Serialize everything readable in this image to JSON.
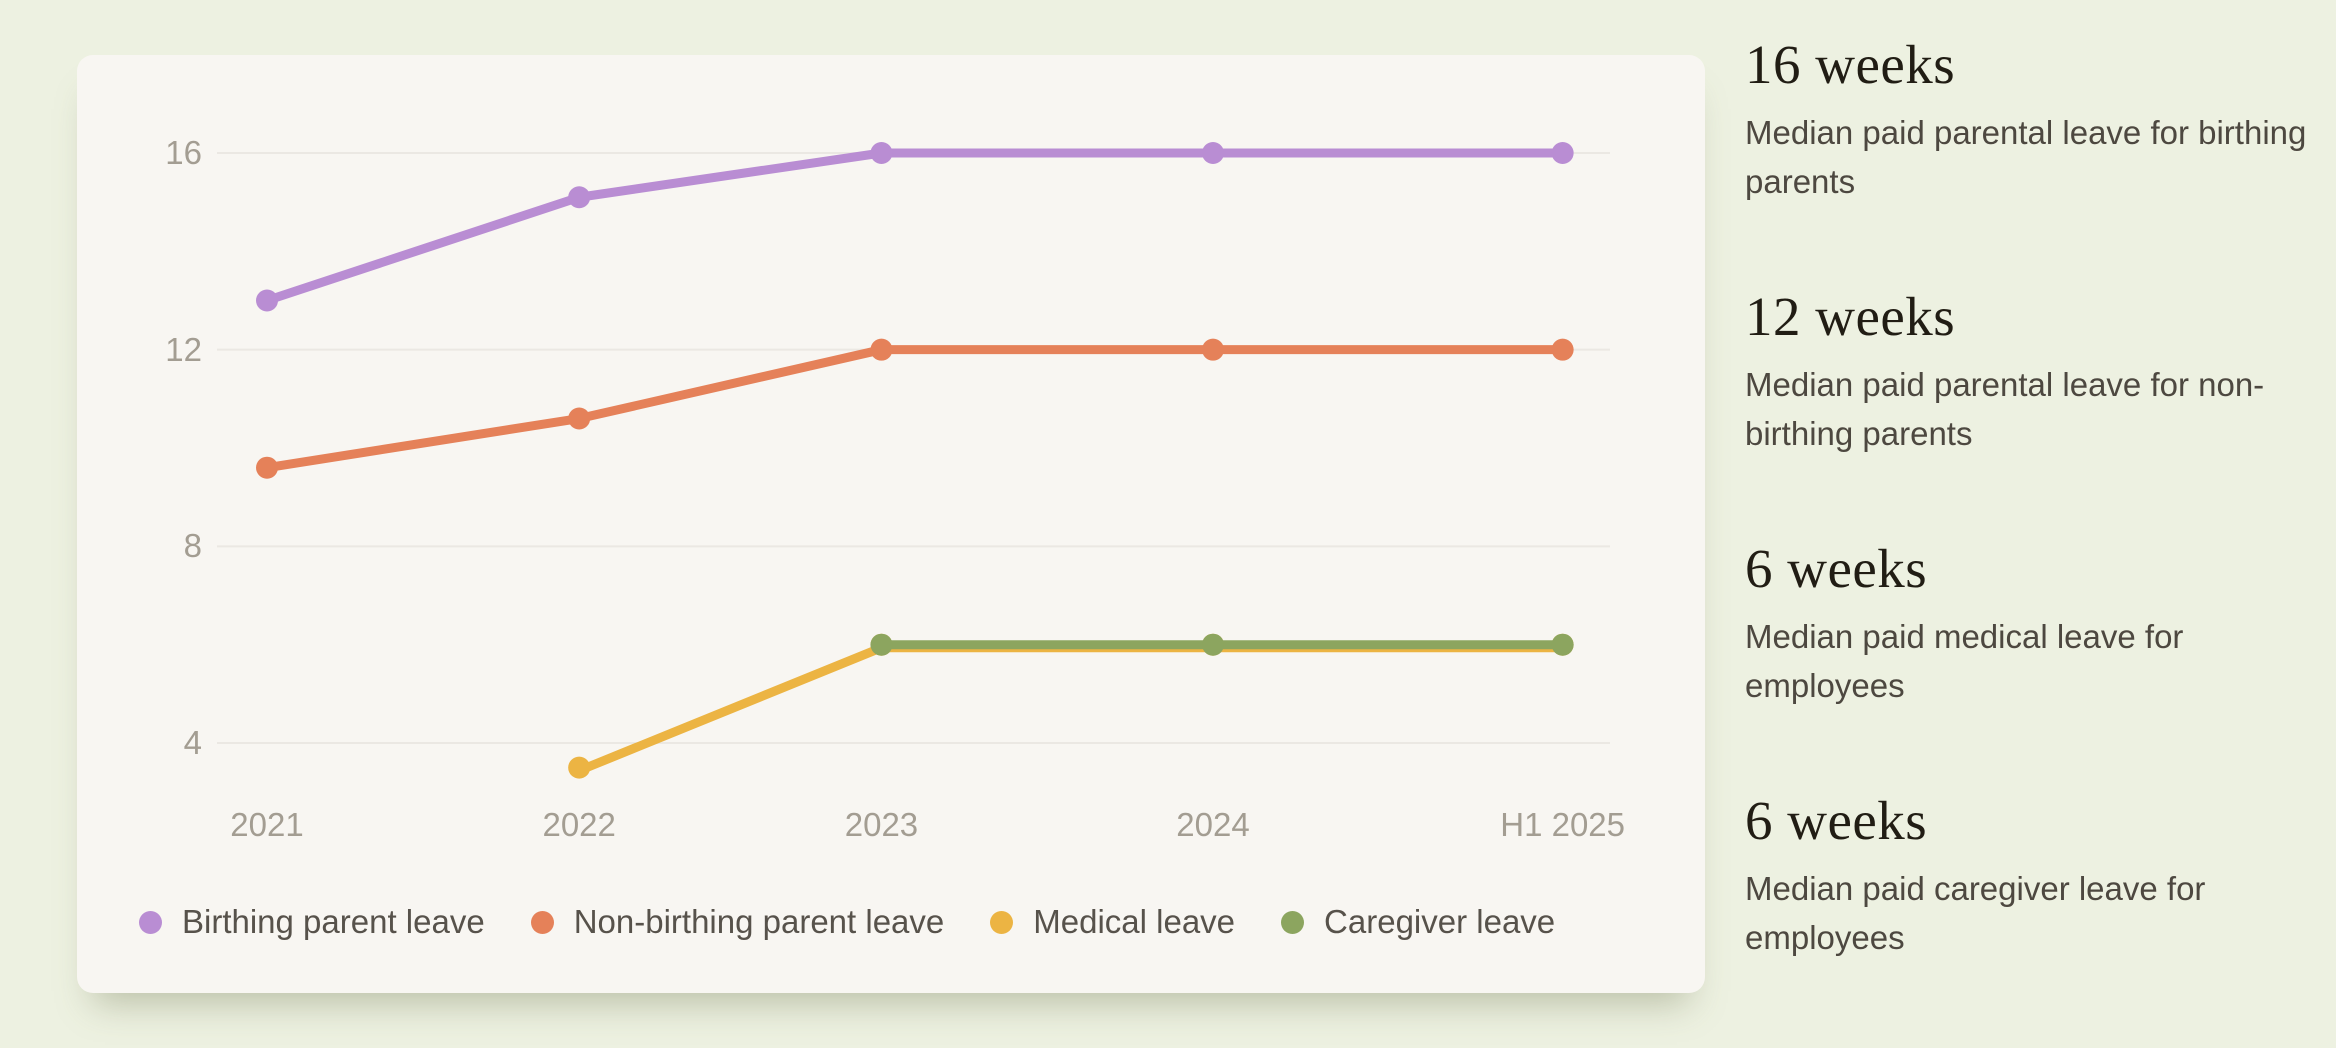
{
  "page": {
    "background": "#edf1e1"
  },
  "card": {
    "background": "#f8f6f2",
    "gridline_color": "#ebe8e3",
    "axis_text_color": "#a39d92"
  },
  "chart_data": {
    "type": "line",
    "categories": [
      "2021",
      "2022",
      "2023",
      "2024",
      "H1 2025"
    ],
    "series": [
      {
        "name": "Birthing parent leave",
        "color": "#b98dd3",
        "values": [
          13,
          15.1,
          16,
          16,
          16
        ]
      },
      {
        "name": "Non-birthing parent leave",
        "color": "#e58159",
        "values": [
          9.6,
          10.6,
          12,
          12,
          12
        ]
      },
      {
        "name": "Medical leave",
        "color": "#ecb443",
        "values": [
          null,
          3.5,
          6,
          6,
          6
        ]
      },
      {
        "name": "Caregiver leave",
        "color": "#8ca55f",
        "values": [
          null,
          null,
          6,
          6,
          6
        ]
      }
    ],
    "title": "",
    "xlabel": "",
    "ylabel": "",
    "yticks": [
      "16",
      "12",
      "8",
      "4"
    ],
    "ylim": [
      3,
      17
    ],
    "grid": "horizontal",
    "legend_position": "bottom"
  },
  "stats": [
    {
      "value": "16 weeks",
      "description": "Median paid parental leave for birthing parents"
    },
    {
      "value": "12 weeks",
      "description": "Median paid parental leave for non-birthing parents"
    },
    {
      "value": "6 weeks",
      "description": "Median paid medical leave for employees"
    },
    {
      "value": "6 weeks",
      "description": "Median paid caregiver leave for employees"
    }
  ]
}
